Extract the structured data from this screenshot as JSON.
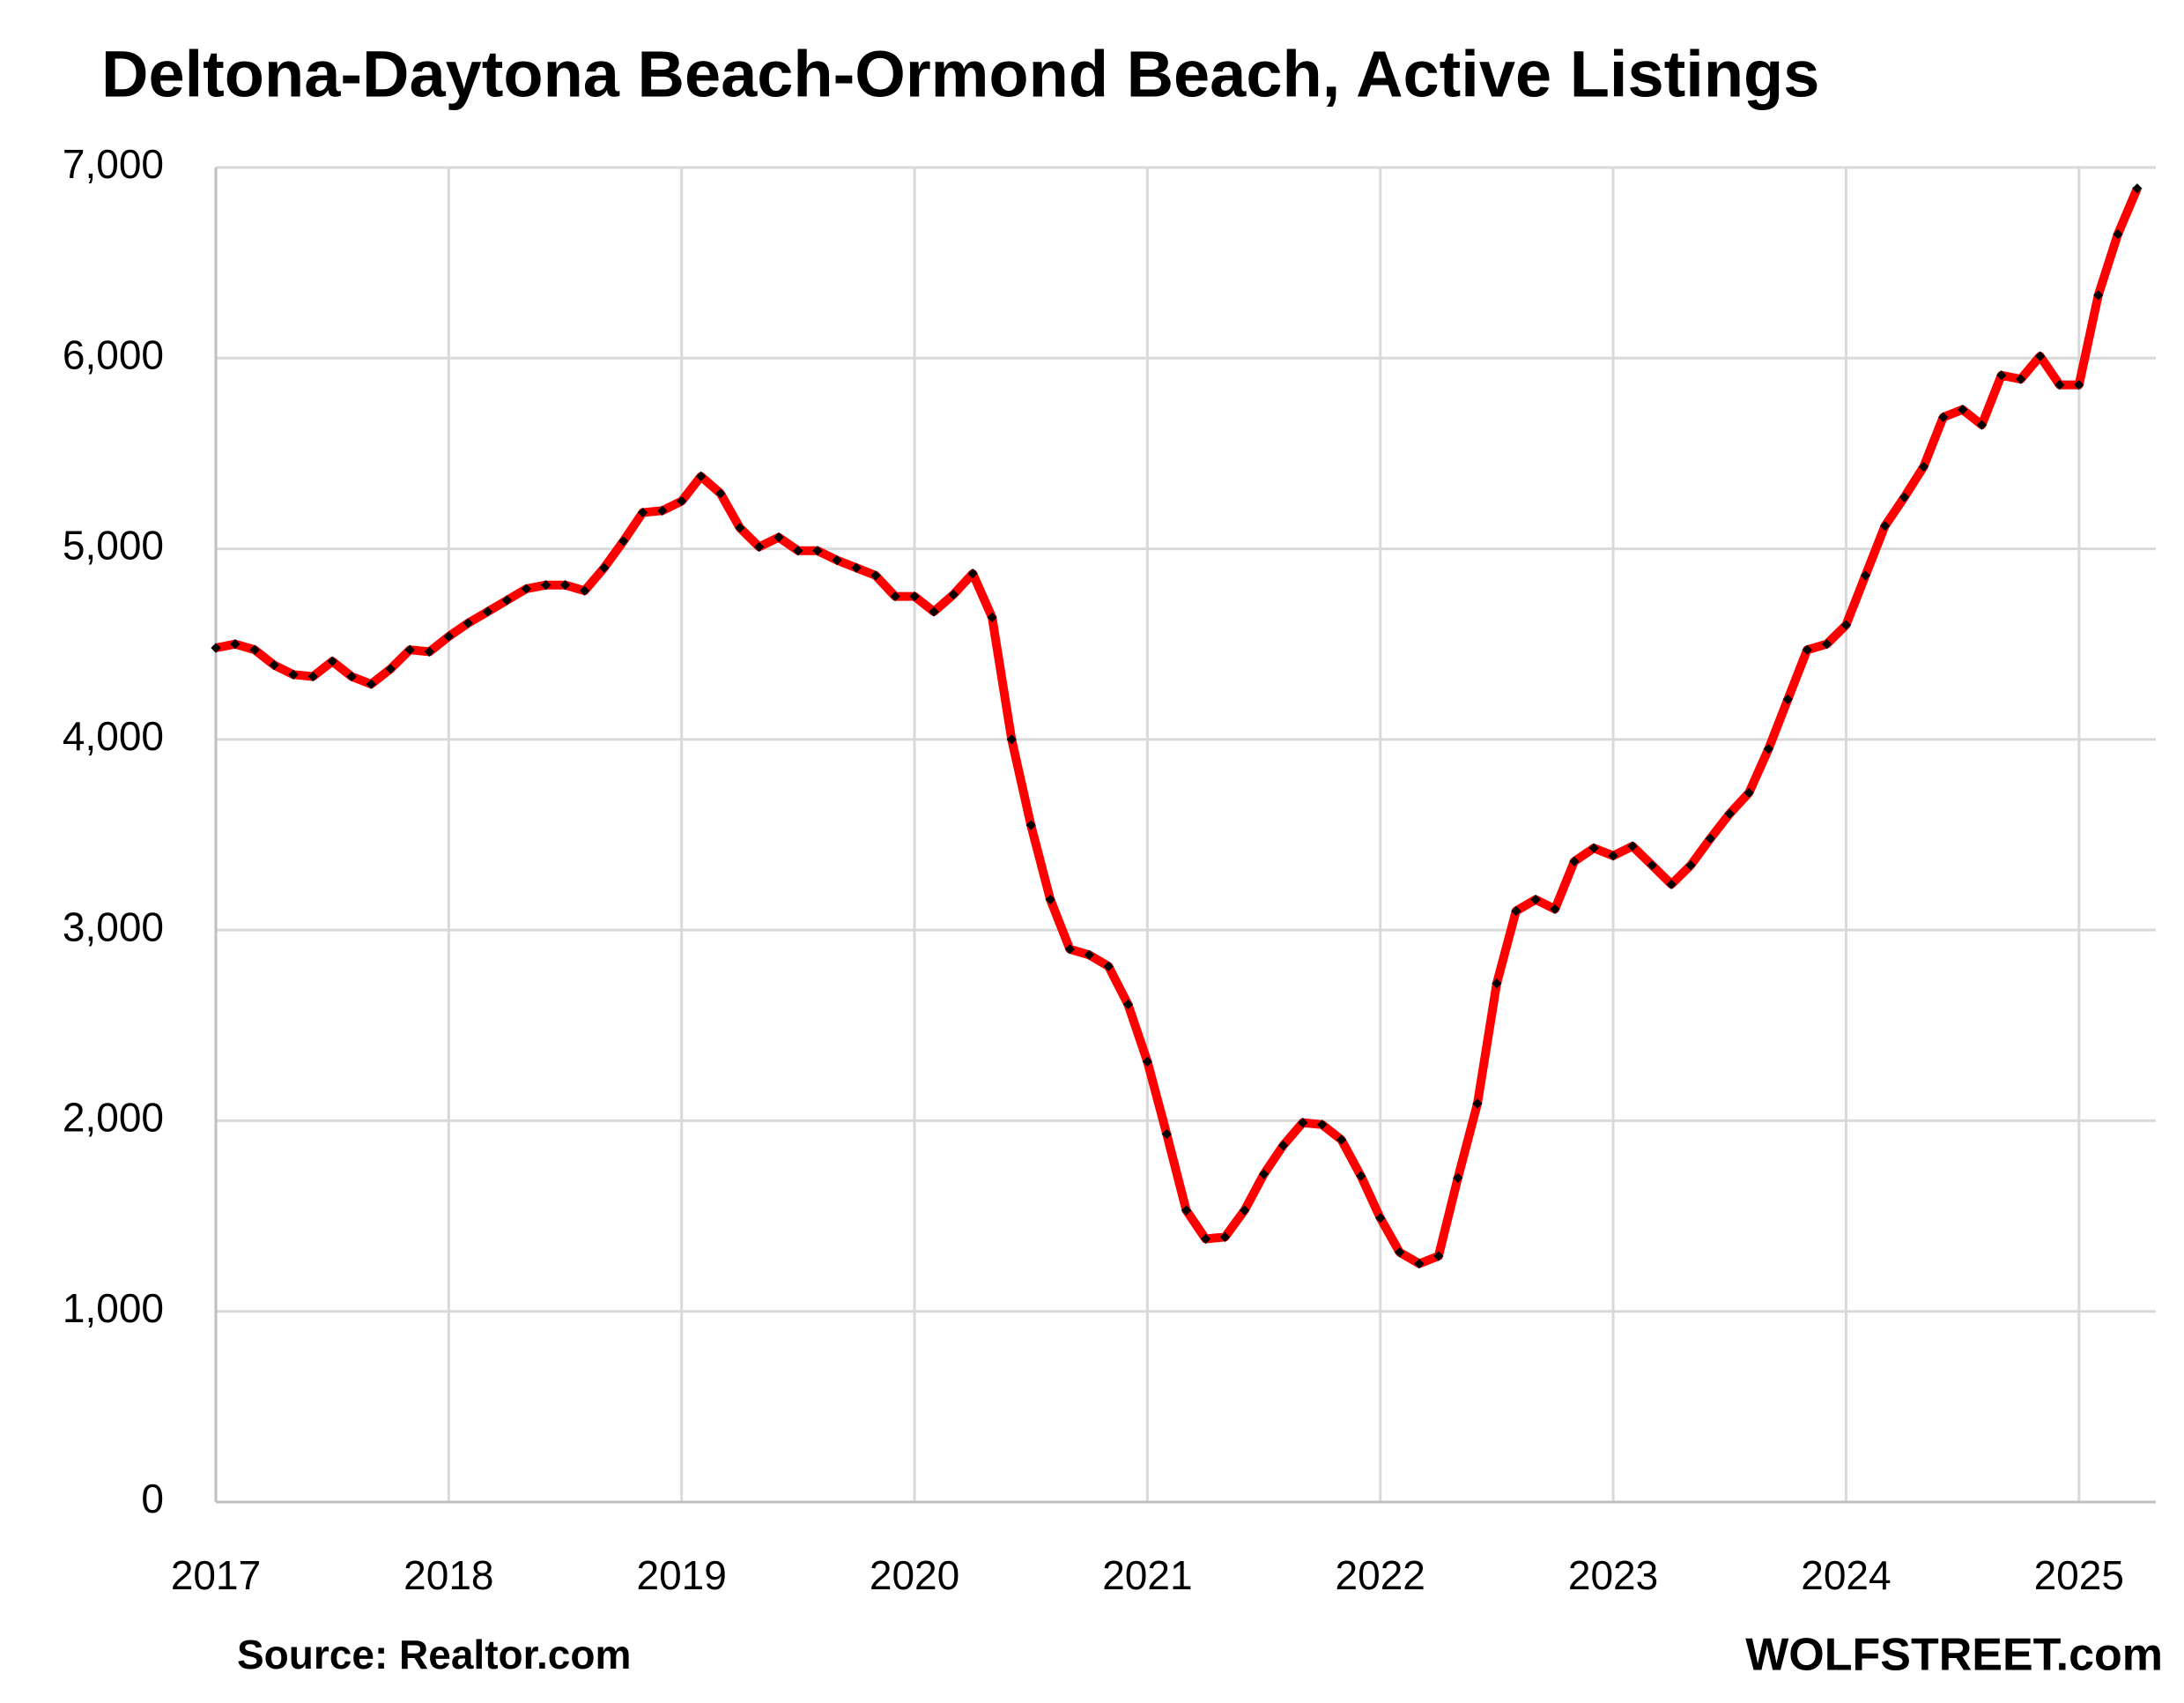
{
  "chart_data": {
    "type": "line",
    "title": "Deltona-Daytona Beach-Ormond Beach, Active Listings",
    "source": "Source: Realtor.com",
    "watermark": "WOLFSTREET.com",
    "x": [
      2017,
      2017.083,
      2017.167,
      2017.25,
      2017.333,
      2017.417,
      2017.5,
      2017.583,
      2017.667,
      2017.75,
      2017.833,
      2017.917,
      2018,
      2018.083,
      2018.167,
      2018.25,
      2018.333,
      2018.417,
      2018.5,
      2018.583,
      2018.667,
      2018.75,
      2018.833,
      2018.917,
      2019,
      2019.083,
      2019.167,
      2019.25,
      2019.333,
      2019.417,
      2019.5,
      2019.583,
      2019.667,
      2019.75,
      2019.833,
      2019.917,
      2020,
      2020.083,
      2020.167,
      2020.25,
      2020.333,
      2020.417,
      2020.5,
      2020.583,
      2020.667,
      2020.75,
      2020.833,
      2020.917,
      2021,
      2021.083,
      2021.167,
      2021.25,
      2021.333,
      2021.417,
      2021.5,
      2021.583,
      2021.667,
      2021.75,
      2021.833,
      2021.917,
      2022,
      2022.083,
      2022.167,
      2022.25,
      2022.333,
      2022.417,
      2022.5,
      2022.583,
      2022.667,
      2022.75,
      2022.833,
      2022.917,
      2023,
      2023.083,
      2023.167,
      2023.25,
      2023.333,
      2023.417,
      2023.5,
      2023.583,
      2023.667,
      2023.75,
      2023.833,
      2023.917,
      2024,
      2024.083,
      2024.167,
      2024.25,
      2024.333,
      2024.417,
      2024.5,
      2024.583,
      2024.667,
      2024.75,
      2024.833,
      2024.917,
      2025,
      2025.083,
      2025.167,
      2025.25
    ],
    "values": [
      4480,
      4500,
      4470,
      4390,
      4340,
      4330,
      4410,
      4330,
      4290,
      4370,
      4470,
      4460,
      4540,
      4610,
      4670,
      4730,
      4790,
      4810,
      4810,
      4780,
      4900,
      5040,
      5190,
      5200,
      5250,
      5380,
      5290,
      5110,
      5010,
      5060,
      4990,
      4990,
      4940,
      4900,
      4860,
      4750,
      4750,
      4670,
      4760,
      4870,
      4640,
      4000,
      3550,
      3160,
      2900,
      2870,
      2810,
      2610,
      2310,
      1930,
      1530,
      1380,
      1390,
      1530,
      1720,
      1870,
      1990,
      1980,
      1900,
      1710,
      1490,
      1310,
      1250,
      1290,
      1700,
      2090,
      2720,
      3100,
      3160,
      3110,
      3360,
      3430,
      3390,
      3440,
      3340,
      3240,
      3340,
      3480,
      3610,
      3720,
      3950,
      4210,
      4470,
      4500,
      4600,
      4860,
      5120,
      5270,
      5430,
      5690,
      5730,
      5650,
      5910,
      5890,
      6010,
      5860,
      5860,
      6330,
      6650,
      6890
    ],
    "color": "#ff0000",
    "marker_color": "#000000",
    "xlim": [
      2017,
      2025.33
    ],
    "xticks": [
      2017,
      2018,
      2019,
      2020,
      2021,
      2022,
      2023,
      2024,
      2025
    ],
    "ylim": [
      0,
      7000
    ],
    "yticks": [
      0,
      {
        "value": 1000,
        "label": "1,000"
      },
      {
        "value": 2000,
        "label": "2,000"
      },
      {
        "value": 3000,
        "label": "3,000"
      },
      {
        "value": 4000,
        "label": "4,000"
      },
      {
        "value": 5000,
        "label": "5,000"
      },
      {
        "value": 6000,
        "label": "6,000"
      },
      {
        "value": 7000,
        "label": "7,000"
      }
    ],
    "grid": true
  }
}
